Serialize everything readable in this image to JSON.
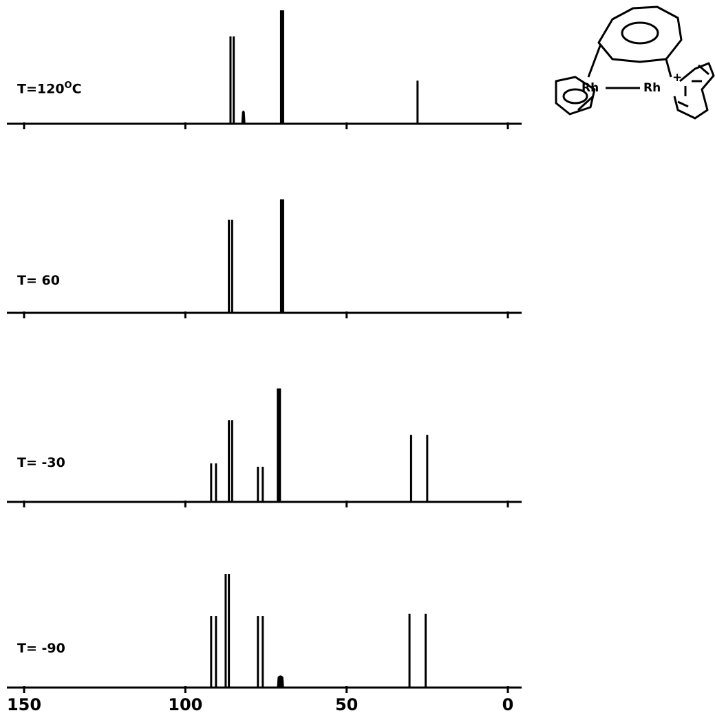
{
  "chart_data": {
    "type": "bar",
    "description_free": true,
    "x_axis": {
      "ticks": [
        "150",
        "100",
        "50",
        "0"
      ],
      "tick_values": [
        150,
        100,
        50,
        0
      ],
      "xlim": [
        150,
        0
      ]
    },
    "ylim": [
      0,
      1
    ],
    "panels": [
      {
        "label": "T=120",
        "label_suffix": "O",
        "label_unit": "C",
        "peaks": [
          {
            "x": 86.0,
            "h": 0.77,
            "w": 0.25,
            "style": "line"
          },
          {
            "x": 85.0,
            "h": 0.77,
            "w": 0.25,
            "style": "line"
          },
          {
            "x": 82.0,
            "h": 0.12,
            "w": 1.3,
            "style": "broad"
          },
          {
            "x": 70.0,
            "h": 1.0,
            "w": 0.9,
            "style": "bold"
          },
          {
            "x": 28.0,
            "h": 0.38,
            "w": 0.25,
            "style": "line"
          }
        ]
      },
      {
        "label": "T= 60",
        "peaks": [
          {
            "x": 86.5,
            "h": 0.82,
            "w": 0.25,
            "style": "line"
          },
          {
            "x": 85.5,
            "h": 0.82,
            "w": 0.25,
            "style": "line"
          },
          {
            "x": 70.0,
            "h": 1.0,
            "w": 0.9,
            "style": "bold"
          }
        ]
      },
      {
        "label": "T= -30",
        "peaks": [
          {
            "x": 92.0,
            "h": 0.34,
            "w": 0.25,
            "style": "line"
          },
          {
            "x": 90.5,
            "h": 0.34,
            "w": 0.25,
            "style": "line"
          },
          {
            "x": 86.5,
            "h": 0.72,
            "w": 0.25,
            "style": "line"
          },
          {
            "x": 85.5,
            "h": 0.72,
            "w": 0.25,
            "style": "line"
          },
          {
            "x": 77.5,
            "h": 0.31,
            "w": 0.25,
            "style": "line"
          },
          {
            "x": 76.0,
            "h": 0.31,
            "w": 0.25,
            "style": "line"
          },
          {
            "x": 71.0,
            "h": 1.0,
            "w": 1.3,
            "style": "bold"
          },
          {
            "x": 30.0,
            "h": 0.59,
            "w": 0.25,
            "style": "line"
          },
          {
            "x": 25.0,
            "h": 0.59,
            "w": 0.25,
            "style": "line"
          }
        ]
      },
      {
        "label": "T= -90",
        "peaks": [
          {
            "x": 92.0,
            "h": 0.63,
            "w": 0.25,
            "style": "line"
          },
          {
            "x": 90.5,
            "h": 0.63,
            "w": 0.25,
            "style": "line"
          },
          {
            "x": 87.5,
            "h": 1.0,
            "w": 0.25,
            "style": "line"
          },
          {
            "x": 86.5,
            "h": 1.0,
            "w": 0.25,
            "style": "line"
          },
          {
            "x": 77.5,
            "h": 0.63,
            "w": 0.25,
            "style": "line"
          },
          {
            "x": 76.0,
            "h": 0.63,
            "w": 0.25,
            "style": "line"
          },
          {
            "x": 70.5,
            "h": 0.11,
            "w": 2.2,
            "style": "broad"
          },
          {
            "x": 30.5,
            "h": 0.65,
            "w": 0.25,
            "style": "line"
          },
          {
            "x": 25.5,
            "h": 0.65,
            "w": 0.25,
            "style": "line"
          }
        ]
      }
    ]
  },
  "molecule": {
    "rh_left": "Rh",
    "rh_right": "Rh",
    "charge": "+"
  }
}
